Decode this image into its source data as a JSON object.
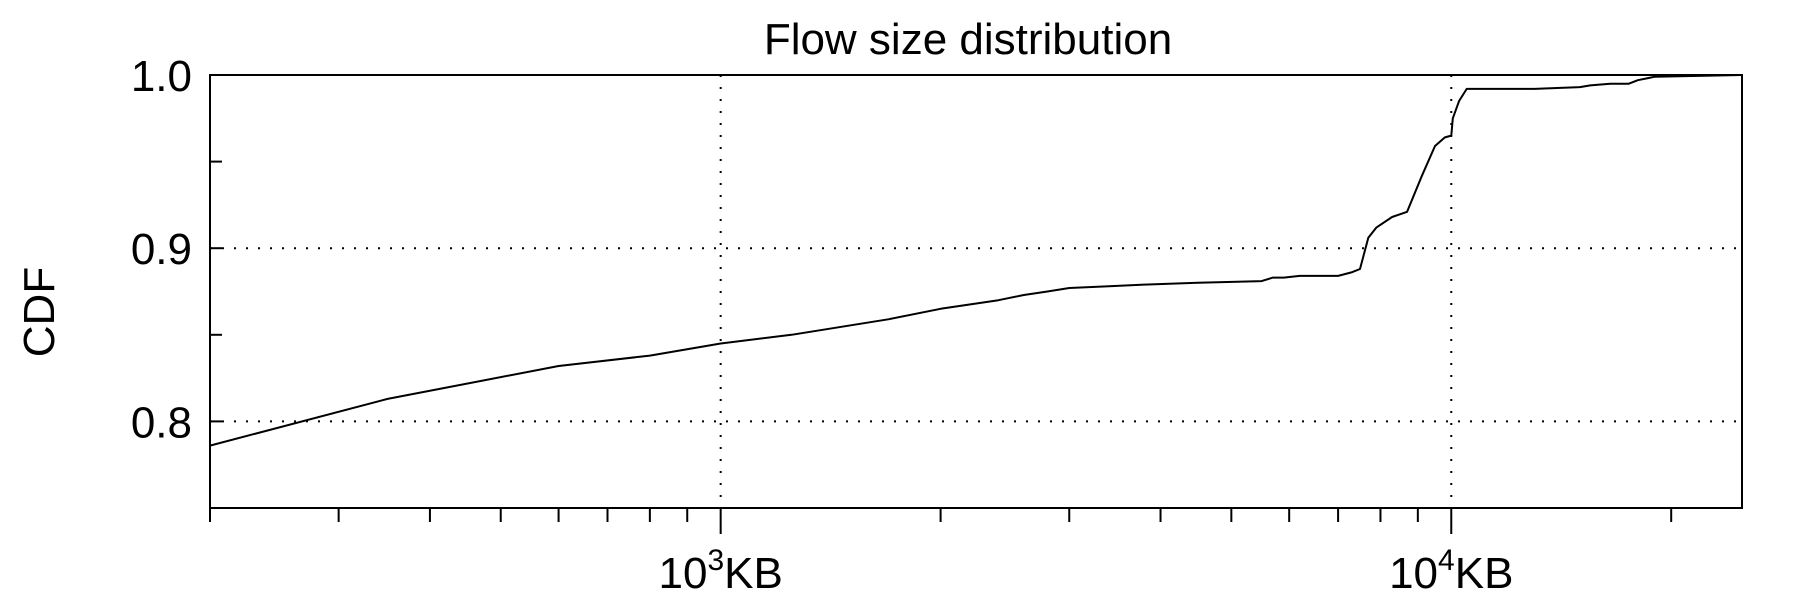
{
  "chart_data": {
    "type": "line",
    "title": "Flow size distribution",
    "xlabel": "",
    "ylabel": "CDF",
    "xscale": "log",
    "xlim": [
      200,
      25000
    ],
    "ylim": [
      0.75,
      1.0
    ],
    "grid": true,
    "legend": "none",
    "y_ticks": [
      {
        "value": 0.8,
        "label": "0.8"
      },
      {
        "value": 0.9,
        "label": "0.9"
      },
      {
        "value": 1.0,
        "label": "1.0"
      }
    ],
    "y_minor_ticks": [
      0.75,
      0.85,
      0.95
    ],
    "x_ticks": [
      {
        "value": 1000,
        "base": "10",
        "exp": "3",
        "unit": "KB"
      },
      {
        "value": 10000,
        "base": "10",
        "exp": "4",
        "unit": "KB"
      }
    ],
    "x_minor_ticks": [
      200,
      300,
      400,
      500,
      600,
      700,
      800,
      900,
      2000,
      3000,
      4000,
      5000,
      6000,
      7000,
      8000,
      9000,
      20000
    ],
    "series": [
      {
        "x": [
          200,
          350,
          600,
          800,
          1000,
          1250,
          1700,
          2000,
          2400,
          2600,
          2800,
          3000,
          3400,
          3800,
          4500,
          5500,
          5700,
          5900,
          6200,
          7000,
          7300,
          7500,
          7700,
          7900,
          8300,
          8700,
          9100,
          9500,
          9800,
          10000,
          10050,
          10250,
          10500,
          13000,
          15000,
          15500,
          16500,
          17500,
          18000,
          19000,
          25000
        ],
        "y": [
          0.786,
          0.813,
          0.832,
          0.838,
          0.845,
          0.85,
          0.859,
          0.865,
          0.87,
          0.873,
          0.875,
          0.877,
          0.878,
          0.879,
          0.88,
          0.881,
          0.883,
          0.883,
          0.884,
          0.884,
          0.886,
          0.888,
          0.906,
          0.912,
          0.918,
          0.921,
          0.941,
          0.959,
          0.964,
          0.965,
          0.975,
          0.985,
          0.992,
          0.992,
          0.993,
          0.994,
          0.995,
          0.995,
          0.997,
          0.999,
          1.0
        ]
      }
    ],
    "colors": {
      "line": "#000000",
      "frame": "#000000",
      "background": "#ffffff"
    }
  }
}
